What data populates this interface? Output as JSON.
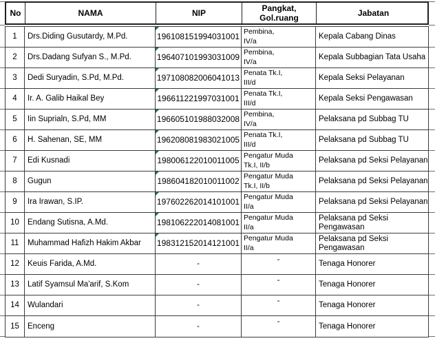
{
  "colors": {
    "flag_triangle": "#1e7244",
    "grid_border": "#3a3a3a",
    "header_border": "#1f1f1f"
  },
  "table": {
    "headers": {
      "no": "No",
      "nama": "NAMA",
      "nip": "NIP",
      "pangkat": "Pangkat,\nGol.ruang",
      "jabatan": "Jabatan"
    },
    "rows": [
      {
        "no": "1",
        "nama": "Drs.Diding Gusutardy, M.Pd.",
        "nip": "196108151994031001",
        "pangkat": "Pembina,\nIV/a",
        "jabatan": "Kepala Cabang Dinas",
        "flag": true
      },
      {
        "no": "2",
        "nama": "Drs.Dadang Sufyan S., M.Pd.",
        "nip": "196407101993031009",
        "pangkat": "Pembina,\nIV/a",
        "jabatan": "Kepala Subbagian Tata Usaha",
        "flag": true
      },
      {
        "no": "3",
        "nama": "Dedi Suryadin, S.Pd, M.Pd.",
        "nip": "197108082006041013",
        "pangkat": "Penata Tk.I,\nIII/d",
        "jabatan": "Kepala Seksi Pelayanan",
        "flag": true
      },
      {
        "no": "4",
        "nama": "Ir. A. Galib Haikal Bey",
        "nip": "196611221997031001",
        "pangkat": "Penata Tk.I,\nIII/d",
        "jabatan": "Kepala Seksi Pengawasan",
        "flag": true
      },
      {
        "no": "5",
        "nama": "Iin Suprialn, S.Pd, MM",
        "nip": "196605101988032008",
        "pangkat": "Pembina,\nIV/a",
        "jabatan": "Pelaksana pd Subbag TU",
        "flag": true
      },
      {
        "no": "6",
        "nama": "H. Sahenan, SE, MM",
        "nip": "196208081983021005",
        "pangkat": "Penata Tk.I,\nIII/d",
        "jabatan": "Pelaksana pd Subbag TU",
        "flag": true
      },
      {
        "no": "7",
        "nama": "Edi Kusnadi",
        "nip": "198006122010011005",
        "pangkat": "Pengatur Muda\nTk.I, II/b",
        "jabatan": "Pelaksana pd Seksi Pelayanan",
        "flag": true
      },
      {
        "no": "8",
        "nama": "Gugun",
        "nip": "198604182010011002",
        "pangkat": "Pengatur Muda\nTk.I, II/b",
        "jabatan": "Pelaksana pd Seksi Pelayanan",
        "flag": true
      },
      {
        "no": "9",
        "nama": "Ira Irawan, S.IP.",
        "nip": "197602262014101001",
        "pangkat": "Pengatur Muda\nII/a",
        "jabatan": "Pelaksana pd Seksi Pelayanan",
        "flag": true
      },
      {
        "no": "10",
        "nama": "Endang Sutisna, A.Md.",
        "nip": "198106222014081001",
        "pangkat": "Pengatur Muda\nII/a",
        "jabatan": "Pelaksana pd Seksi Pengawasan",
        "flag": true
      },
      {
        "no": "11",
        "nama": "Muhammad Hafizh Hakim Akbar",
        "nip": "198312152014121001",
        "pangkat": "Pengatur Muda\nII/a",
        "jabatan": "Pelaksana pd Seksi Pengawasan",
        "flag": true
      },
      {
        "no": "12",
        "nama": "Keuis Farida, A.Md.",
        "nip": "-",
        "pangkat": "-",
        "jabatan": "Tenaga Honorer",
        "flag": false
      },
      {
        "no": "13",
        "nama": "Latif Syamsul Ma'arif, S.Kom",
        "nip": "-",
        "pangkat": "-",
        "jabatan": "Tenaga Honorer",
        "flag": false
      },
      {
        "no": "14",
        "nama": "Wulandari",
        "nip": "-",
        "pangkat": "-",
        "jabatan": "Tenaga Honorer",
        "flag": false
      },
      {
        "no": "15",
        "nama": "Enceng",
        "nip": "-",
        "pangkat": "-",
        "jabatan": "Tenaga Honorer",
        "flag": false
      }
    ]
  }
}
